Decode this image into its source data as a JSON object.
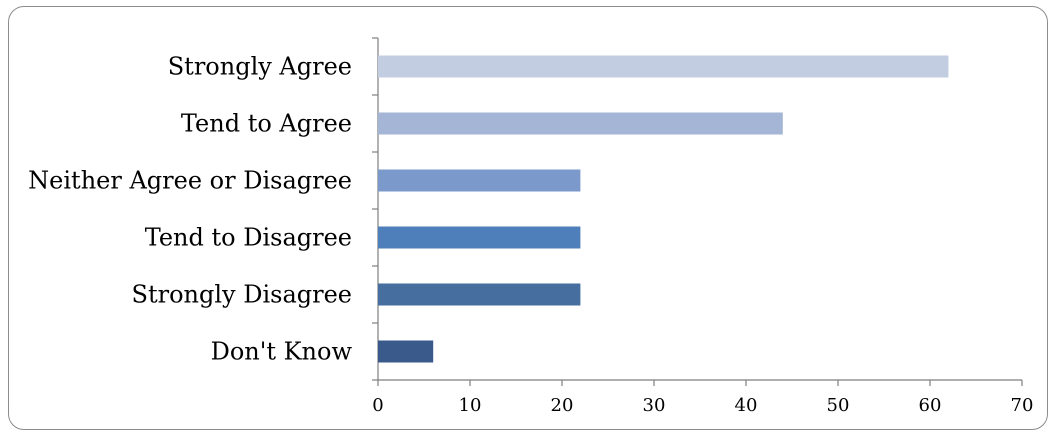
{
  "chart_data": {
    "type": "bar",
    "orientation": "horizontal",
    "categories": [
      "Strongly Agree",
      "Tend to Agree",
      "Neither Agree or Disagree",
      "Tend to Disagree",
      "Strongly Disagree",
      "Don't Know"
    ],
    "values": [
      62,
      44,
      22,
      22,
      22,
      6
    ],
    "colors": [
      "#c3cde1",
      "#a4b5d6",
      "#7b9acb",
      "#4f7fbb",
      "#466f9f",
      "#3a5a8b"
    ],
    "xlim": [
      0,
      70
    ],
    "xticks": [
      0,
      10,
      20,
      30,
      40,
      50,
      60,
      70
    ],
    "grid": false,
    "legend": "none"
  }
}
